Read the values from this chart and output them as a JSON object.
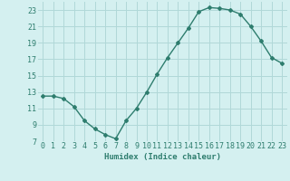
{
  "x": [
    0,
    1,
    2,
    3,
    4,
    5,
    6,
    7,
    8,
    9,
    10,
    11,
    12,
    13,
    14,
    15,
    16,
    17,
    18,
    19,
    20,
    21,
    22,
    23
  ],
  "y": [
    12.5,
    12.5,
    12.2,
    11.2,
    9.5,
    8.5,
    7.8,
    7.3,
    9.5,
    11.0,
    13.0,
    15.2,
    17.2,
    19.0,
    20.8,
    22.8,
    23.3,
    23.2,
    23.0,
    22.5,
    21.0,
    19.2,
    17.2,
    16.5
  ],
  "line_color": "#2e7d6e",
  "marker": "D",
  "marker_size": 2.0,
  "bg_color": "#d4f0f0",
  "grid_color": "#b0d8d8",
  "xlabel": "Humidex (Indice chaleur)",
  "xlim": [
    -0.5,
    23.5
  ],
  "ylim": [
    7,
    24
  ],
  "yticks": [
    7,
    9,
    11,
    13,
    15,
    17,
    19,
    21,
    23
  ],
  "xticks": [
    0,
    1,
    2,
    3,
    4,
    5,
    6,
    7,
    8,
    9,
    10,
    11,
    12,
    13,
    14,
    15,
    16,
    17,
    18,
    19,
    20,
    21,
    22,
    23
  ],
  "label_fontsize": 6.5,
  "tick_fontsize": 6.0
}
